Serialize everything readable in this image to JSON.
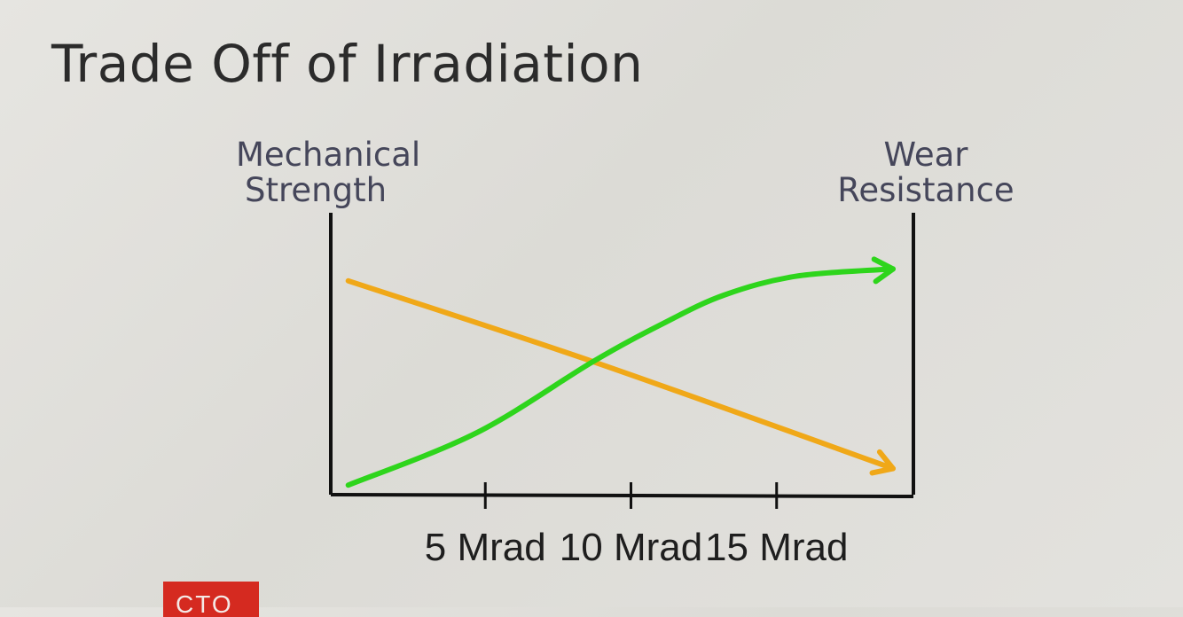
{
  "slide": {
    "title": "Trade Off of Irradiation",
    "badge_text": "CTO"
  },
  "chart_data": {
    "type": "line",
    "title": "Trade Off of Irradiation",
    "y_left_label": [
      "Mechanical",
      "Strength"
    ],
    "y_right_label": [
      "Wear",
      "Resistance"
    ],
    "x_ticks": [
      {
        "value": 5,
        "label": "5 Mrad"
      },
      {
        "value": 10,
        "label": "10 Mrad"
      },
      {
        "value": 15,
        "label": "15 Mrad"
      }
    ],
    "xlim": [
      0,
      20
    ],
    "ylim": [
      0,
      10
    ],
    "grid": false,
    "series": [
      {
        "color": "#f0a818",
        "axis": "left",
        "points": [
          [
            0.6,
            9.0
          ],
          [
            9,
            5.6
          ],
          [
            19.3,
            1.1
          ]
        ]
      },
      {
        "color": "#2ed51c",
        "axis": "right",
        "points": [
          [
            0.6,
            0.4
          ],
          [
            5,
            2.6
          ],
          [
            9,
            5.6
          ],
          [
            11.4,
            7.2
          ],
          [
            13.5,
            8.4
          ],
          [
            16,
            9.2
          ],
          [
            19.3,
            9.5
          ]
        ]
      }
    ]
  }
}
